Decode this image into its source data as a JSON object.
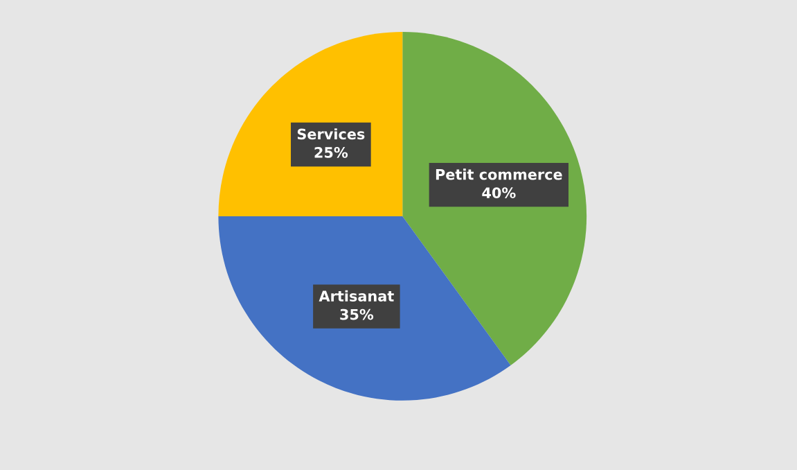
{
  "chart_data": {
    "type": "pie",
    "categories": [
      "Petit commerce",
      "Artisanat",
      "Services"
    ],
    "values": [
      40,
      35,
      25
    ],
    "colors": [
      "#70ad47",
      "#4472c4",
      "#ffc000"
    ],
    "value_labels": [
      "40%",
      "35%",
      "25%"
    ],
    "legend": false
  }
}
